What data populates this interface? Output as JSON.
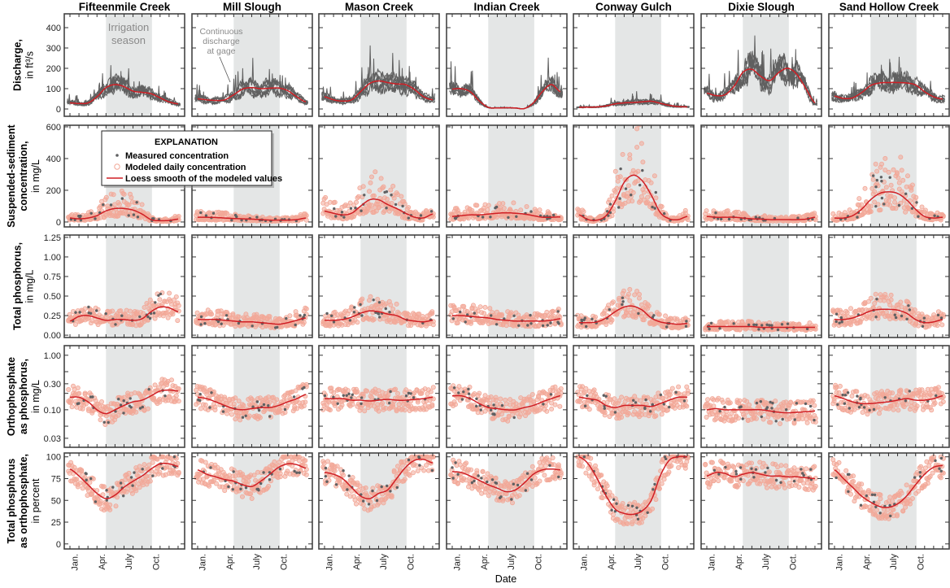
{
  "chart_data": {
    "type": "scatter",
    "xlabel": "Date",
    "month_labels": [
      {
        "label": "Jan.",
        "month": 0.5
      },
      {
        "label": "Apr.",
        "month": 3.5
      },
      {
        "label": "July",
        "month": 6.5
      },
      {
        "label": "Oct.",
        "month": 9.5
      }
    ],
    "irrigation_season_months": [
      4.0,
      9.1
    ],
    "sites": [
      "Fifteenmile Creek",
      "Mill Slough",
      "Mason Creek",
      "Indian Creek",
      "Conway Gulch",
      "Dixie Slough",
      "Sand Hollow Creek"
    ],
    "annotations": {
      "irrigation": [
        "Irrigation",
        "season"
      ],
      "gage": [
        "Continuous",
        "discharge",
        "at gage"
      ]
    },
    "legend": {
      "title": "EXPLANATION",
      "items": [
        "Measured concentration",
        "Modeled daily concentration",
        "Loess smooth of the modeled values"
      ]
    },
    "colors": {
      "measured": "#5f6062",
      "modeled": "#f2a898",
      "loess": "#d01f25",
      "discharge": "#606060",
      "shade": "#e4e6e6"
    },
    "rows": [
      {
        "key": "discharge",
        "ylabel_bold": [
          "Discharge,"
        ],
        "ylabel_normal": "in ft³/s",
        "scale": "linear",
        "ylim": [
          -36,
          468
        ],
        "ticks": [
          0,
          100,
          200,
          300,
          400
        ],
        "tick_labels": [
          "0",
          "100",
          "200",
          "300",
          "400"
        ],
        "spread": 0.3,
        "loess": [
          [
            30,
            27,
            30,
            60,
            105,
            120,
            110,
            88,
            82,
            75,
            55,
            35,
            25
          ],
          [
            50,
            45,
            42,
            45,
            70,
            98,
            105,
            100,
            102,
            103,
            90,
            60,
            35
          ],
          [
            60,
            45,
            39,
            45,
            85,
            125,
            138,
            130,
            123,
            120,
            95,
            60,
            45
          ],
          [
            98,
            100,
            85,
            40,
            8,
            5,
            6,
            5,
            2,
            30,
            85,
            120,
            85
          ],
          [
            8,
            9,
            10,
            15,
            25,
            30,
            32,
            35,
            38,
            28,
            18,
            12,
            10
          ],
          [
            78,
            66,
            70,
            110,
            180,
            195,
            160,
            140,
            180,
            200,
            170,
            100,
            30
          ],
          [
            63,
            52,
            55,
            80,
            115,
            128,
            130,
            130,
            128,
            118,
            85,
            60,
            49
          ]
        ]
      },
      {
        "key": "ssc",
        "ylabel_bold": [
          "Suspended-sediment",
          "concentration,"
        ],
        "ylabel_normal": "in mg/L",
        "scale": "linear",
        "ylim": [
          -31,
          610
        ],
        "ticks": [
          0,
          200,
          400,
          600
        ],
        "tick_labels": [
          "0",
          "200",
          "400",
          "600"
        ],
        "spread": 0.55,
        "loess": [
          [
            25,
            20,
            25,
            40,
            70,
            85,
            85,
            75,
            50,
            15,
            8,
            10,
            18
          ],
          [
            30,
            30,
            28,
            25,
            22,
            20,
            18,
            15,
            12,
            12,
            12,
            15,
            25
          ],
          [
            68,
            55,
            45,
            55,
            100,
            140,
            140,
            110,
            85,
            55,
            30,
            26,
            50
          ],
          [
            35,
            40,
            45,
            45,
            50,
            55,
            58,
            55,
            50,
            40,
            30,
            30,
            32
          ],
          [
            45,
            15,
            12,
            40,
            130,
            250,
            295,
            260,
            170,
            60,
            20,
            15,
            35
          ],
          [
            35,
            30,
            30,
            30,
            25,
            20,
            18,
            15,
            15,
            15,
            15,
            18,
            30
          ],
          [
            25,
            25,
            40,
            80,
            140,
            180,
            190,
            180,
            140,
            80,
            35,
            25,
            30
          ]
        ]
      },
      {
        "key": "tp",
        "ylabel_bold": [
          "Total phosphorus,"
        ],
        "ylabel_normal": "in mg/L",
        "scale": "linear",
        "ylim": [
          -0.03,
          1.28
        ],
        "ticks": [
          0,
          0.25,
          0.5,
          0.75,
          1.0,
          1.25
        ],
        "tick_labels": [
          "0.00",
          "0.25",
          "0.50",
          "0.75",
          "1.00",
          "1.25"
        ],
        "spread": 0.3,
        "loess": [
          [
            0.18,
            0.24,
            0.25,
            0.22,
            0.19,
            0.2,
            0.2,
            0.19,
            0.21,
            0.3,
            0.36,
            0.35,
            0.3
          ],
          [
            0.2,
            0.2,
            0.2,
            0.19,
            0.18,
            0.17,
            0.17,
            0.16,
            0.15,
            0.14,
            0.16,
            0.19,
            0.22
          ],
          [
            0.19,
            0.19,
            0.2,
            0.23,
            0.28,
            0.31,
            0.3,
            0.27,
            0.25,
            0.2,
            0.18,
            0.17,
            0.19
          ],
          [
            0.25,
            0.25,
            0.24,
            0.23,
            0.22,
            0.2,
            0.19,
            0.18,
            0.18,
            0.18,
            0.18,
            0.19,
            0.21
          ],
          [
            0.16,
            0.16,
            0.17,
            0.22,
            0.3,
            0.36,
            0.37,
            0.32,
            0.22,
            0.17,
            0.15,
            0.14,
            0.15
          ],
          [
            0.11,
            0.11,
            0.11,
            0.11,
            0.11,
            0.11,
            0.1,
            0.1,
            0.1,
            0.1,
            0.1,
            0.1,
            0.1
          ],
          [
            0.2,
            0.2,
            0.22,
            0.26,
            0.31,
            0.33,
            0.33,
            0.32,
            0.28,
            0.2,
            0.16,
            0.17,
            0.2
          ]
        ]
      },
      {
        "key": "ortho",
        "ylabel_bold": [
          "Orthophosphate",
          "as phosphorus,"
        ],
        "ylabel_normal": "in mg/L",
        "scale": "log",
        "ylim": [
          0.0205,
          1.5
        ],
        "ticks": [
          0.03,
          0.1,
          0.3,
          1.0
        ],
        "tick_labels": [
          "0.03",
          "0.10",
          "0.30",
          "1.00"
        ],
        "minor_ticks": [
          0.05,
          0.2,
          0.5
        ],
        "spread": 0.3,
        "loess": [
          [
            0.17,
            0.17,
            0.14,
            0.1,
            0.085,
            0.1,
            0.12,
            0.14,
            0.15,
            0.18,
            0.22,
            0.23,
            0.22
          ],
          [
            0.17,
            0.16,
            0.14,
            0.12,
            0.105,
            0.1,
            0.105,
            0.11,
            0.11,
            0.12,
            0.14,
            0.16,
            0.19
          ],
          [
            0.16,
            0.16,
            0.16,
            0.15,
            0.15,
            0.145,
            0.15,
            0.155,
            0.15,
            0.15,
            0.155,
            0.16,
            0.17
          ],
          [
            0.18,
            0.18,
            0.16,
            0.13,
            0.11,
            0.105,
            0.1,
            0.1,
            0.11,
            0.12,
            0.14,
            0.16,
            0.18
          ],
          [
            0.17,
            0.16,
            0.15,
            0.12,
            0.11,
            0.12,
            0.12,
            0.12,
            0.115,
            0.13,
            0.15,
            0.17,
            0.17
          ],
          [
            0.1,
            0.105,
            0.1,
            0.1,
            0.1,
            0.1,
            0.1,
            0.095,
            0.09,
            0.088,
            0.09,
            0.092,
            0.095
          ],
          [
            0.18,
            0.16,
            0.14,
            0.13,
            0.13,
            0.135,
            0.14,
            0.15,
            0.16,
            0.15,
            0.15,
            0.16,
            0.18
          ]
        ]
      },
      {
        "key": "pct",
        "ylabel_bold": [
          "Total phosphorus",
          "as orthophosphate,"
        ],
        "ylabel_normal": "in percent",
        "scale": "linear",
        "ylim": [
          -5.8,
          104.4
        ],
        "ticks": [
          0,
          25,
          50,
          75,
          100
        ],
        "tick_labels": [
          "0",
          "25",
          "50",
          "75",
          "100"
        ],
        "spread": 0.14,
        "loess": [
          [
            86,
            78,
            68,
            58,
            52,
            56,
            65,
            72,
            78,
            86,
            92,
            92,
            89
          ],
          [
            85,
            80,
            77,
            74,
            72,
            68,
            66,
            72,
            80,
            88,
            92,
            91,
            87
          ],
          [
            82,
            80,
            75,
            65,
            55,
            52,
            58,
            62,
            75,
            88,
            96,
            97,
            93
          ],
          [
            83,
            82,
            78,
            73,
            68,
            64,
            60,
            62,
            70,
            80,
            85,
            86,
            85
          ],
          [
            100,
            92,
            75,
            55,
            40,
            35,
            34,
            38,
            50,
            78,
            96,
            100,
            100
          ],
          [
            78,
            82,
            81,
            77,
            80,
            82,
            80,
            78,
            78,
            77,
            77,
            76,
            75
          ],
          [
            85,
            75,
            65,
            55,
            48,
            43,
            42,
            46,
            55,
            68,
            80,
            88,
            90
          ]
        ]
      }
    ]
  }
}
